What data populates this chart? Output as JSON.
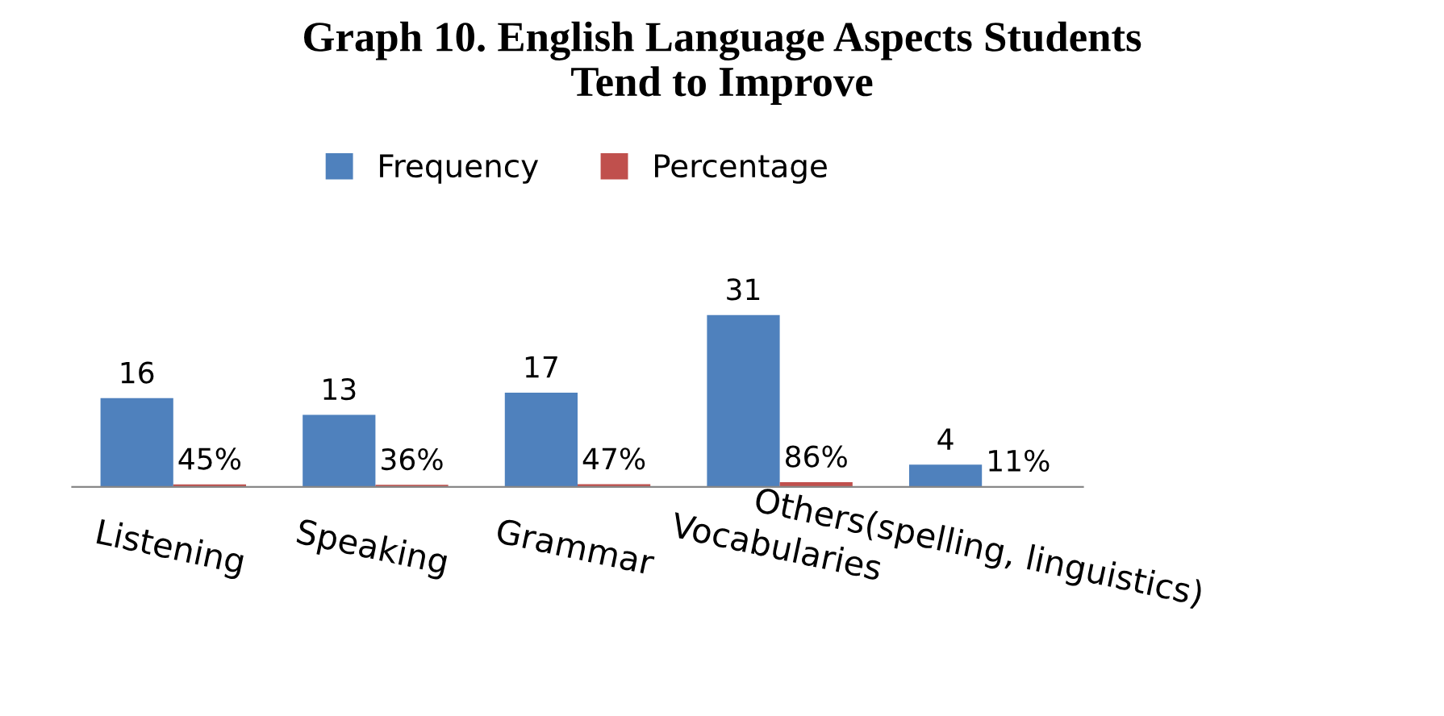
{
  "chart_data": {
    "type": "bar",
    "title": "Graph 10. English Language Aspects Students\nTend to Improve",
    "categories": [
      "Listening",
      "Speaking",
      "Grammar",
      "Vocabularies",
      "Others(spelling, linguistics)"
    ],
    "series": [
      {
        "name": "Frequency",
        "color": "#4f81bd",
        "values": [
          16,
          13,
          17,
          31,
          4
        ],
        "value_labels": [
          "16",
          "13",
          "17",
          "31",
          "4"
        ]
      },
      {
        "name": "Percentage",
        "color": "#c0504d",
        "values": [
          0.45,
          0.36,
          0.47,
          0.86,
          0.11
        ],
        "value_labels": [
          "45%",
          "36%",
          "47%",
          "86%",
          "11%"
        ]
      }
    ],
    "legend": "top",
    "grid": false
  }
}
